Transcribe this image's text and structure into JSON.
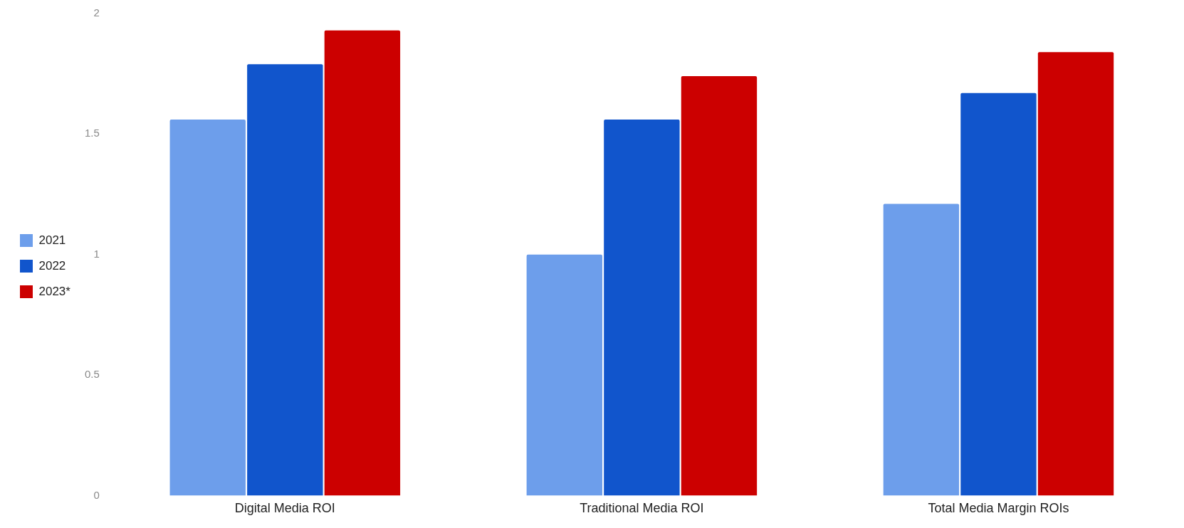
{
  "chart_data": {
    "type": "bar",
    "categories": [
      "Digital Media ROI",
      "Traditional Media ROI",
      "Total Media Margin ROIs"
    ],
    "series": [
      {
        "name": "2021",
        "color": "#6d9eeb",
        "values": [
          1.56,
          1.0,
          1.21
        ]
      },
      {
        "name": "2022",
        "color": "#1155cc",
        "values": [
          1.79,
          1.56,
          1.67
        ]
      },
      {
        "name": "2023*",
        "color": "#cc0000",
        "values": [
          1.93,
          1.74,
          1.84
        ]
      }
    ],
    "ylim": [
      0,
      2
    ],
    "yticks": [
      0,
      0.5,
      1,
      1.5,
      2
    ],
    "grid": false,
    "legend": "left"
  }
}
